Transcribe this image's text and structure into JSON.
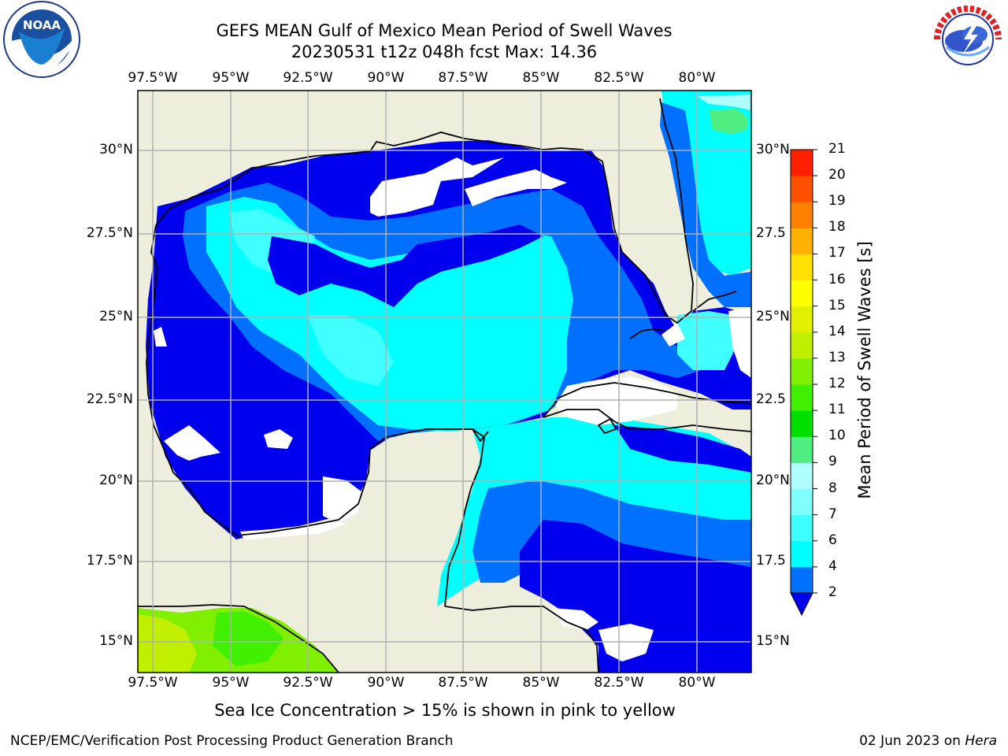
{
  "header": {
    "title_line1": "GEFS MEAN Gulf of Mexico Mean Period of Swell Waves",
    "title_line2": "20230531 t12z 048h fcst   Max: 14.36"
  },
  "logos": {
    "left": "noaa-logo",
    "right": "national-weather-service-logo"
  },
  "map": {
    "region": "Gulf of Mexico",
    "lon_ticks": [
      "97.5°W",
      "95°W",
      "92.5°W",
      "90°W",
      "87.5°W",
      "85°W",
      "82.5°W",
      "80°W"
    ],
    "lat_ticks_left": [
      "30°N",
      "27.5°N",
      "25°N",
      "22.5°N",
      "20°N",
      "17.5°N",
      "15°N"
    ],
    "lat_ticks_right": [
      "30°N",
      "27.5",
      "25°N",
      "22.5",
      "20°N",
      "17.5",
      "15°N"
    ],
    "colors": {
      "land": "#eeeedd",
      "coast": "#000000",
      "grid": "#b0b0b0"
    }
  },
  "colorbar": {
    "label": "Mean Period of Swell Waves [s]",
    "levels": [
      "2",
      "4",
      "6",
      "7",
      "8",
      "9",
      "10",
      "11",
      "12",
      "13",
      "14",
      "15",
      "16",
      "17",
      "18",
      "19",
      "20",
      "21"
    ],
    "colors": [
      "#0070ff",
      "#00ffff",
      "#40ffff",
      "#80ffff",
      "#b0ffff",
      "#50ee80",
      "#00e000",
      "#40f000",
      "#80f000",
      "#c0f000",
      "#e0f000",
      "#ffff00",
      "#ffe000",
      "#ffb000",
      "#ff8000",
      "#ff5000",
      "#ff2000"
    ],
    "under_color": "#0000ee"
  },
  "annotation": "Sea Ice Concentration > 15% is shown in pink to yellow",
  "footer": {
    "left": "NCEP/EMC/Verification Post Processing Product Generation Branch",
    "right_date": "02 Jun 2023 on ",
    "right_machine": "Hera"
  }
}
